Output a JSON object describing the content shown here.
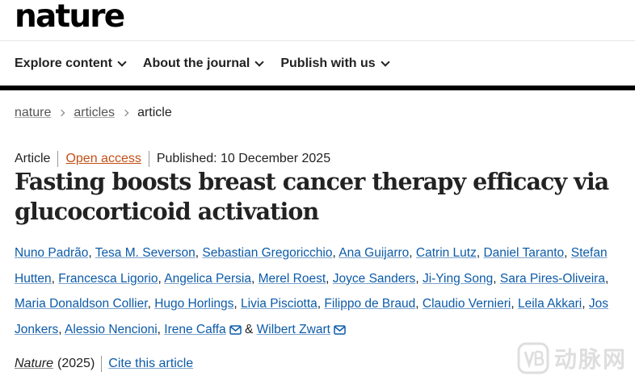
{
  "header": {
    "logo": "nature",
    "nav": [
      {
        "label": "Explore content"
      },
      {
        "label": "About the journal"
      },
      {
        "label": "Publish with us"
      }
    ]
  },
  "breadcrumb": {
    "items": [
      "nature",
      "articles"
    ],
    "current": "article"
  },
  "article": {
    "type": "Article",
    "access": "Open access",
    "published": "Published: 10 December 2025",
    "title": "Fasting boosts breast cancer therapy efficacy via glucocorticoid activation",
    "authors": [
      "Nuno Padrão",
      "Tesa M. Severson",
      "Sebastian Gregoricchio",
      "Ana Guijarro",
      "Catrin Lutz",
      "Daniel Taranto",
      "Stefan Hutten",
      "Francesca Ligorio",
      "Angelica Persia",
      "Merel Roest",
      "Joyce Sanders",
      "Ji-Ying Song",
      "Sara Pires-Oliveira",
      "Maria Donaldson Collier",
      "Hugo Horlings",
      "Livia Pisciotta",
      "Filippo de Braud",
      "Claudio Vernieri",
      "Leila Akkari",
      "Jos Jonkers",
      "Alessio Nencioni",
      "Irene Caffa",
      "Wilbert Zwart"
    ],
    "journal": "Nature",
    "year": "(2025)",
    "cite_label": "Cite this article"
  },
  "watermark": {
    "text": "动脉网",
    "icon": "vb-logo-icon"
  },
  "colors": {
    "link": "#0d5ba8",
    "open_access": "#c44f16",
    "text": "#222222"
  }
}
